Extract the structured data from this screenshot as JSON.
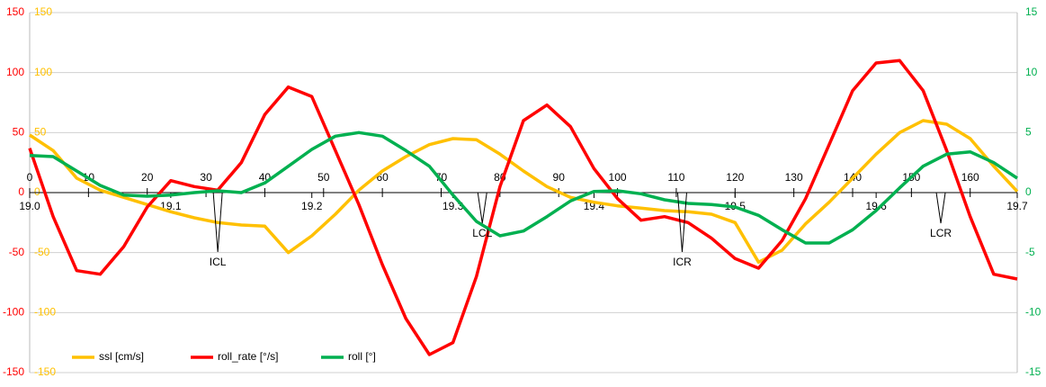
{
  "chart_data": {
    "type": "line",
    "x": [
      0,
      4,
      8,
      12,
      16,
      20,
      24,
      28,
      32,
      36,
      40,
      44,
      48,
      52,
      56,
      60,
      64,
      68,
      72,
      76,
      80,
      84,
      88,
      92,
      96,
      100,
      104,
      108,
      112,
      116,
      120,
      124,
      128,
      132,
      136,
      140,
      144,
      148,
      152,
      156,
      160,
      164,
      168
    ],
    "xlim": [
      0,
      168
    ],
    "xticks": [
      0,
      10,
      20,
      30,
      40,
      50,
      60,
      70,
      80,
      90,
      100,
      110,
      120,
      130,
      140,
      150,
      160
    ],
    "x2ticks": [
      {
        "value": 0,
        "label": "19.0"
      },
      {
        "value": 24,
        "label": "19.1"
      },
      {
        "value": 48,
        "label": "19.2"
      },
      {
        "value": 72,
        "label": "19.3"
      },
      {
        "value": 96,
        "label": "19.4"
      },
      {
        "value": 120,
        "label": "19.5"
      },
      {
        "value": 144,
        "label": "19.6"
      },
      {
        "value": 168,
        "label": "19.7"
      }
    ],
    "ylim": [
      -150,
      150
    ],
    "yticks": [
      -150,
      -100,
      -50,
      0,
      50,
      100,
      150
    ],
    "ycolor": "#ff0000",
    "y3lim": [
      -150,
      150
    ],
    "y3ticks": [
      -150,
      -100,
      -50,
      0,
      50,
      100,
      150
    ],
    "y3color": "#ffc000",
    "y2lim": [
      -15,
      15
    ],
    "y2ticks": [
      -15,
      -10,
      -5,
      0,
      5,
      10,
      15
    ],
    "y2color": "#00b050",
    "grid": true,
    "legend": "bottom-left",
    "series": [
      {
        "name": "ssl [cm/s]",
        "color": "#ffc000",
        "axis": "y3",
        "values": [
          48,
          35,
          12,
          2,
          -4,
          -10,
          -16,
          -21,
          -25,
          -27,
          -28,
          -50,
          -36,
          -18,
          2,
          18,
          30,
          40,
          45,
          44,
          32,
          18,
          5,
          -4,
          -8,
          -11,
          -13,
          -15,
          -16,
          -18,
          -25,
          -58,
          -48,
          -26,
          -8,
          12,
          32,
          50,
          60,
          57,
          45,
          22,
          1
        ]
      },
      {
        "name": "roll_rate [°/s]",
        "color": "#ff0000",
        "values": [
          37,
          -20,
          -65,
          -68,
          -45,
          -12,
          10,
          5,
          2,
          25,
          65,
          88,
          80,
          35,
          -10,
          -60,
          -105,
          -135,
          -125,
          -70,
          5,
          60,
          73,
          55,
          20,
          -5,
          -23,
          -20,
          -25,
          -38,
          -55,
          -63,
          -40,
          -5,
          40,
          85,
          108,
          110,
          85,
          35,
          -20,
          -68,
          -72
        ]
      },
      {
        "name": "roll [°]",
        "color": "#00b050",
        "axis": "y2",
        "values": [
          3.1,
          3.0,
          1.8,
          0.6,
          -0.2,
          -0.3,
          -0.2,
          0,
          0.15,
          0,
          0.8,
          2.2,
          3.6,
          4.7,
          5.0,
          4.7,
          3.5,
          2.2,
          -0.2,
          -2.4,
          -3.6,
          -3.2,
          -2.0,
          -0.7,
          0.1,
          0.15,
          -0.1,
          -0.6,
          -0.9,
          -1.0,
          -1.2,
          -1.9,
          -3.1,
          -4.2,
          -4.2,
          -3.1,
          -1.5,
          0.4,
          2.2,
          3.2,
          3.4,
          2.5,
          1.2
        ]
      }
    ],
    "annotations": [
      {
        "label": "ICL",
        "x": 32
      },
      {
        "label": "LCL",
        "x": 77
      },
      {
        "label": "ICR",
        "x": 111
      },
      {
        "label": "LCR",
        "x": 155
      }
    ]
  }
}
